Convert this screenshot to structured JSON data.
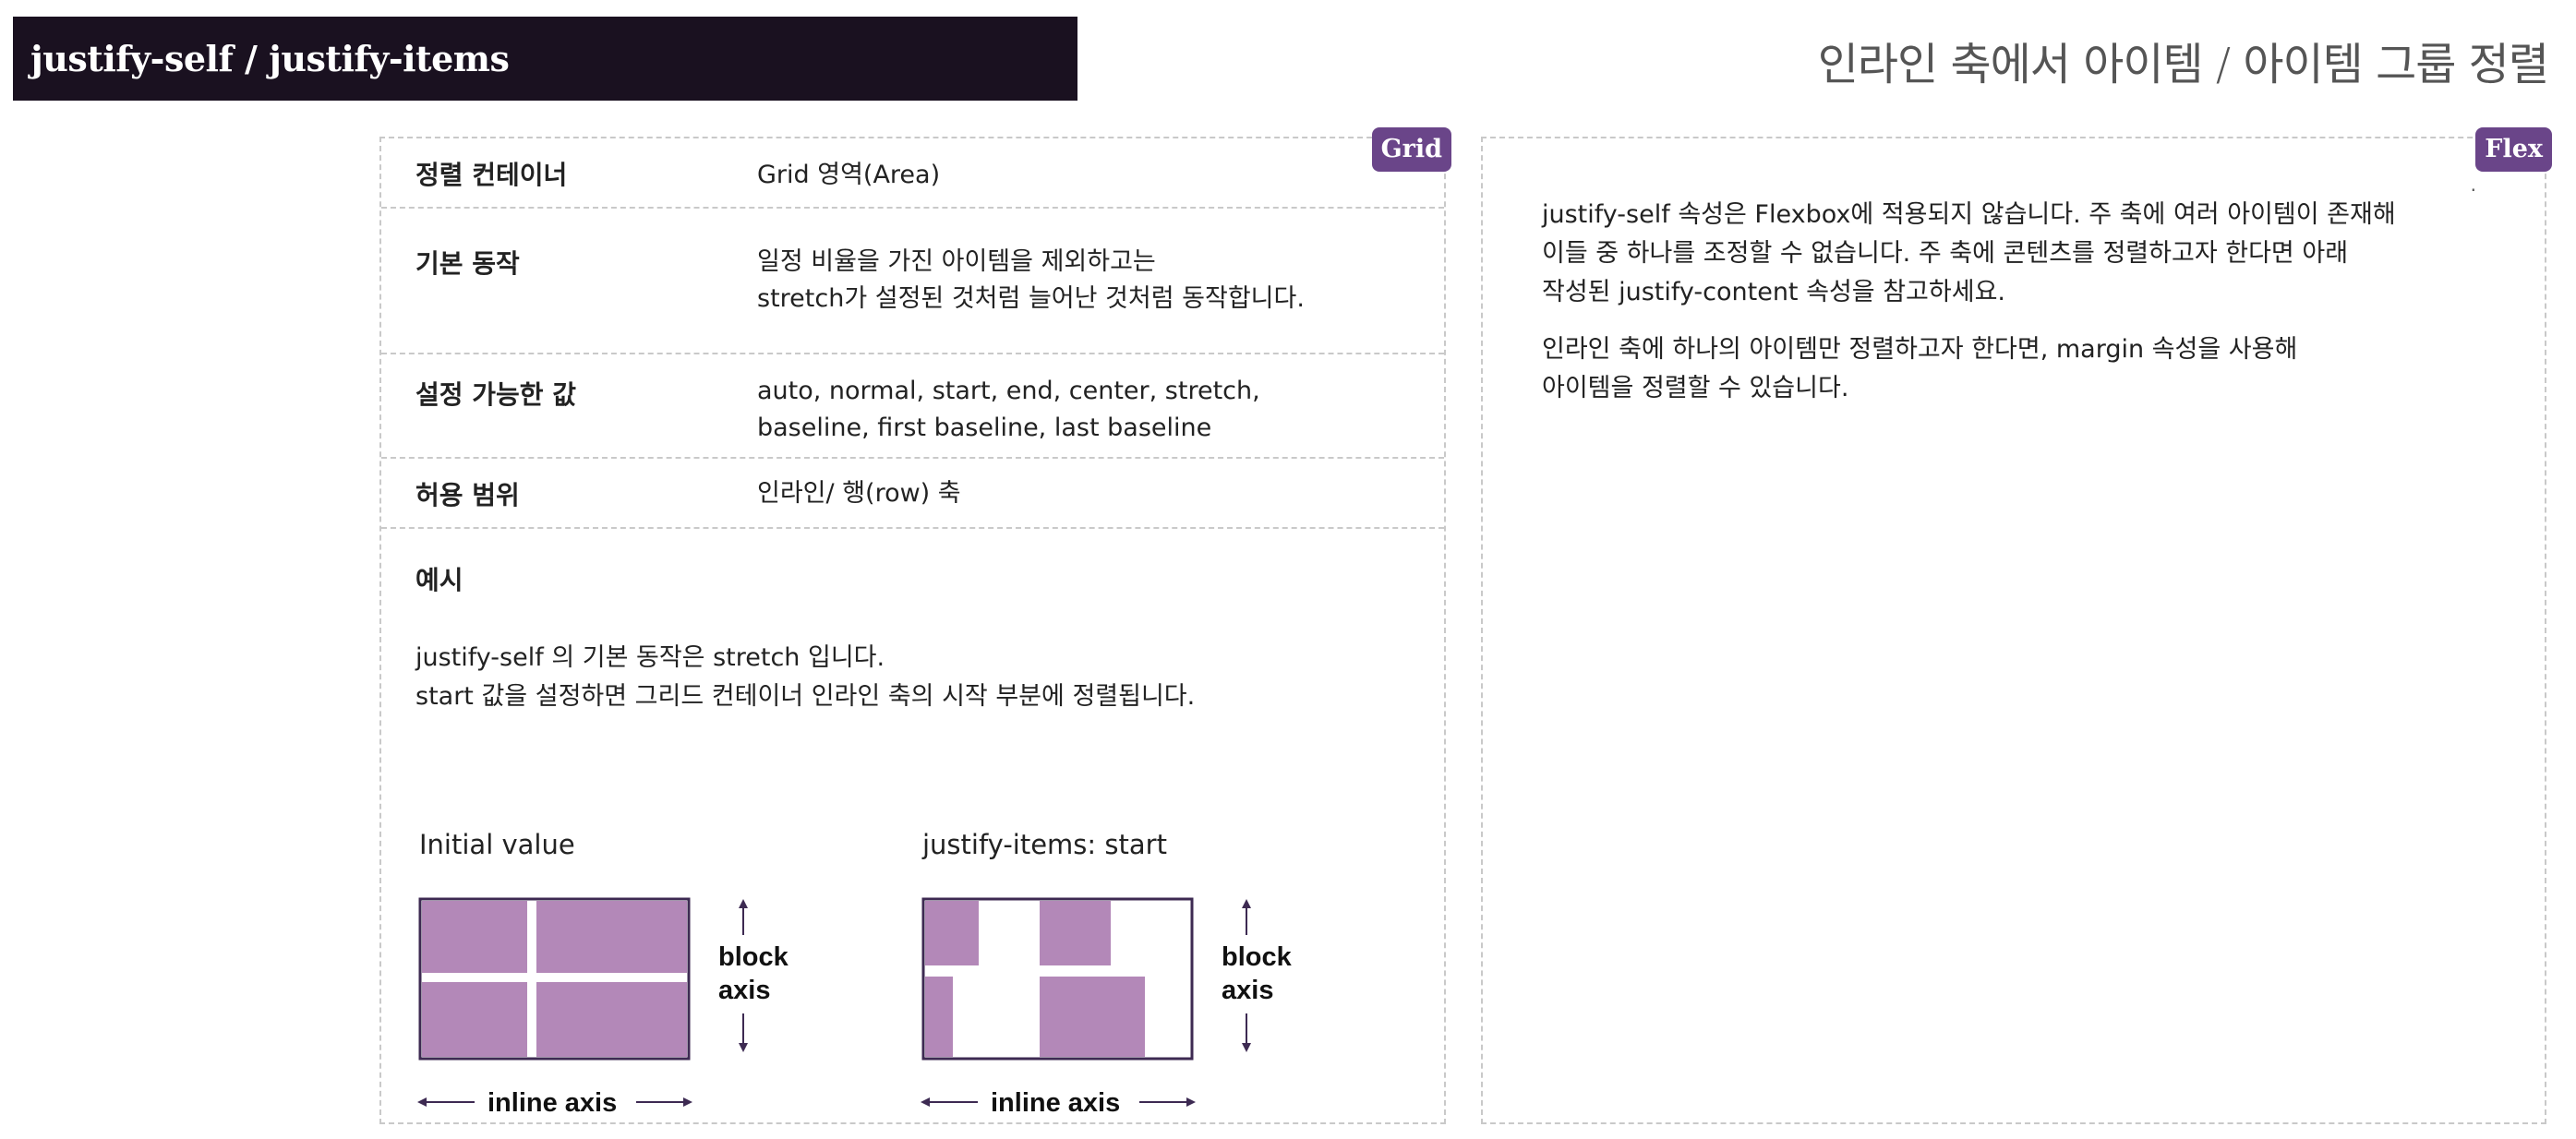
{
  "header": {
    "title": "justify-self / justify-items",
    "subtitle": "인라인 축에서 아이템 / 아이템 그룹 정렬"
  },
  "grid_panel": {
    "badge": "Grid",
    "rows": [
      {
        "label": "정렬 컨테이너",
        "lines": [
          "Grid 영역(Area)"
        ]
      },
      {
        "label": "기본 동작",
        "lines": [
          "일정 비율을 가진 아이템을 제외하고는",
          "stretch가 설정된 것처럼 늘어난 것처럼 동작합니다."
        ]
      },
      {
        "label": "설정 가능한 값",
        "lines": [
          "auto, normal, start, end, center, stretch,",
          "baseline, first baseline, last baseline"
        ]
      },
      {
        "label": "허용 범위",
        "lines": [
          "인라인/ 행(row) 축"
        ]
      }
    ],
    "example": {
      "label": "예시",
      "lines": [
        "justify-self 의 기본 동작은 stretch 입니다.",
        "start 값을 설정하면 그리드 컨테이너 인라인 축의 시작 부분에 정렬됩니다."
      ]
    },
    "diagrams": [
      {
        "title": "Initial value",
        "block_axis": [
          "block",
          "axis"
        ],
        "inline_axis": "inline axis"
      },
      {
        "title": "justify-items: start",
        "block_axis": [
          "block",
          "axis"
        ],
        "inline_axis": "inline axis"
      }
    ]
  },
  "flex_panel": {
    "badge": "Flex",
    "paragraphs": [
      [
        "justify-self 속성은 Flexbox에 적용되지 않습니다. 주 축에 여러 아이템이 존재해",
        "이들 중 하나를 조정할 수 없습니다. 주 축에 콘텐츠를 정렬하고자 한다면 아래",
        "작성된 justify-content 속성을 참고하세요."
      ],
      [
        "인라인 축에 하나의 아이템만 정렬하고자 한다면, margin 속성을 사용해",
        "아이템을 정렬할 수 있습니다."
      ]
    ],
    "corner_mark": "."
  },
  "colors": {
    "title_bar": "#1a1120",
    "badge": "#6a4589",
    "grid_item": "#b388b8",
    "arrow": "#3d2a52",
    "dashed_border": "#c9c9c9"
  }
}
